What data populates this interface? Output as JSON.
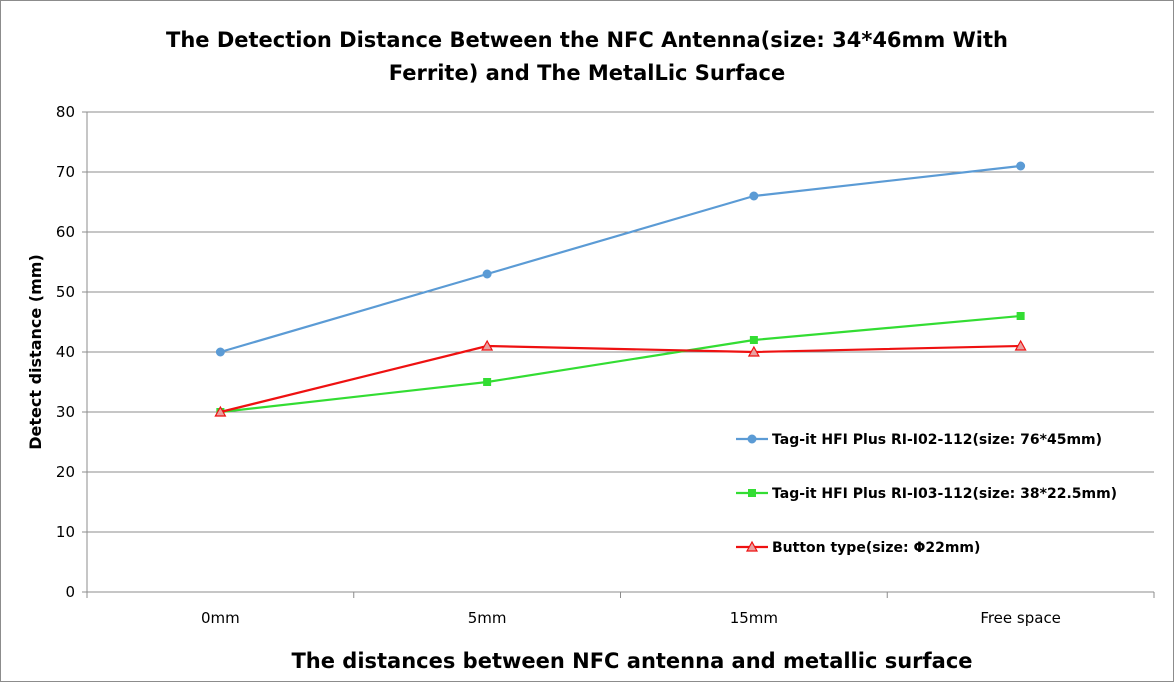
{
  "chart_data": {
    "type": "line",
    "title_lines": [
      "The Detection Distance Between the NFC Antenna(size: 34*46mm With",
      "Ferrite) and The MetalLic Surface"
    ],
    "xlabel": "The distances between NFC antenna and metallic surface",
    "ylabel": "Detect distance (mm)",
    "categories": [
      "0mm",
      "5mm",
      "15mm",
      "Free space"
    ],
    "ylim": [
      0,
      80
    ],
    "yticks": [
      0,
      10,
      20,
      30,
      40,
      50,
      60,
      70,
      80
    ],
    "grid": true,
    "legend_position": "right",
    "series": [
      {
        "name": "Tag-it HFI Plus RI-I02-112(size: 76*45mm)",
        "values": [
          40,
          53,
          66,
          71
        ],
        "color": "#5b9bd5",
        "marker": "circle"
      },
      {
        "name": "Tag-it HFI Plus RI-I03-112(size: 38*22.5mm)",
        "values": [
          30,
          35,
          42,
          46
        ],
        "color": "#33dd33",
        "marker": "square"
      },
      {
        "name": "Button type(size: Φ22mm)",
        "values": [
          30,
          41,
          40,
          41
        ],
        "color": "#ee1111",
        "marker": "triangle"
      }
    ]
  }
}
